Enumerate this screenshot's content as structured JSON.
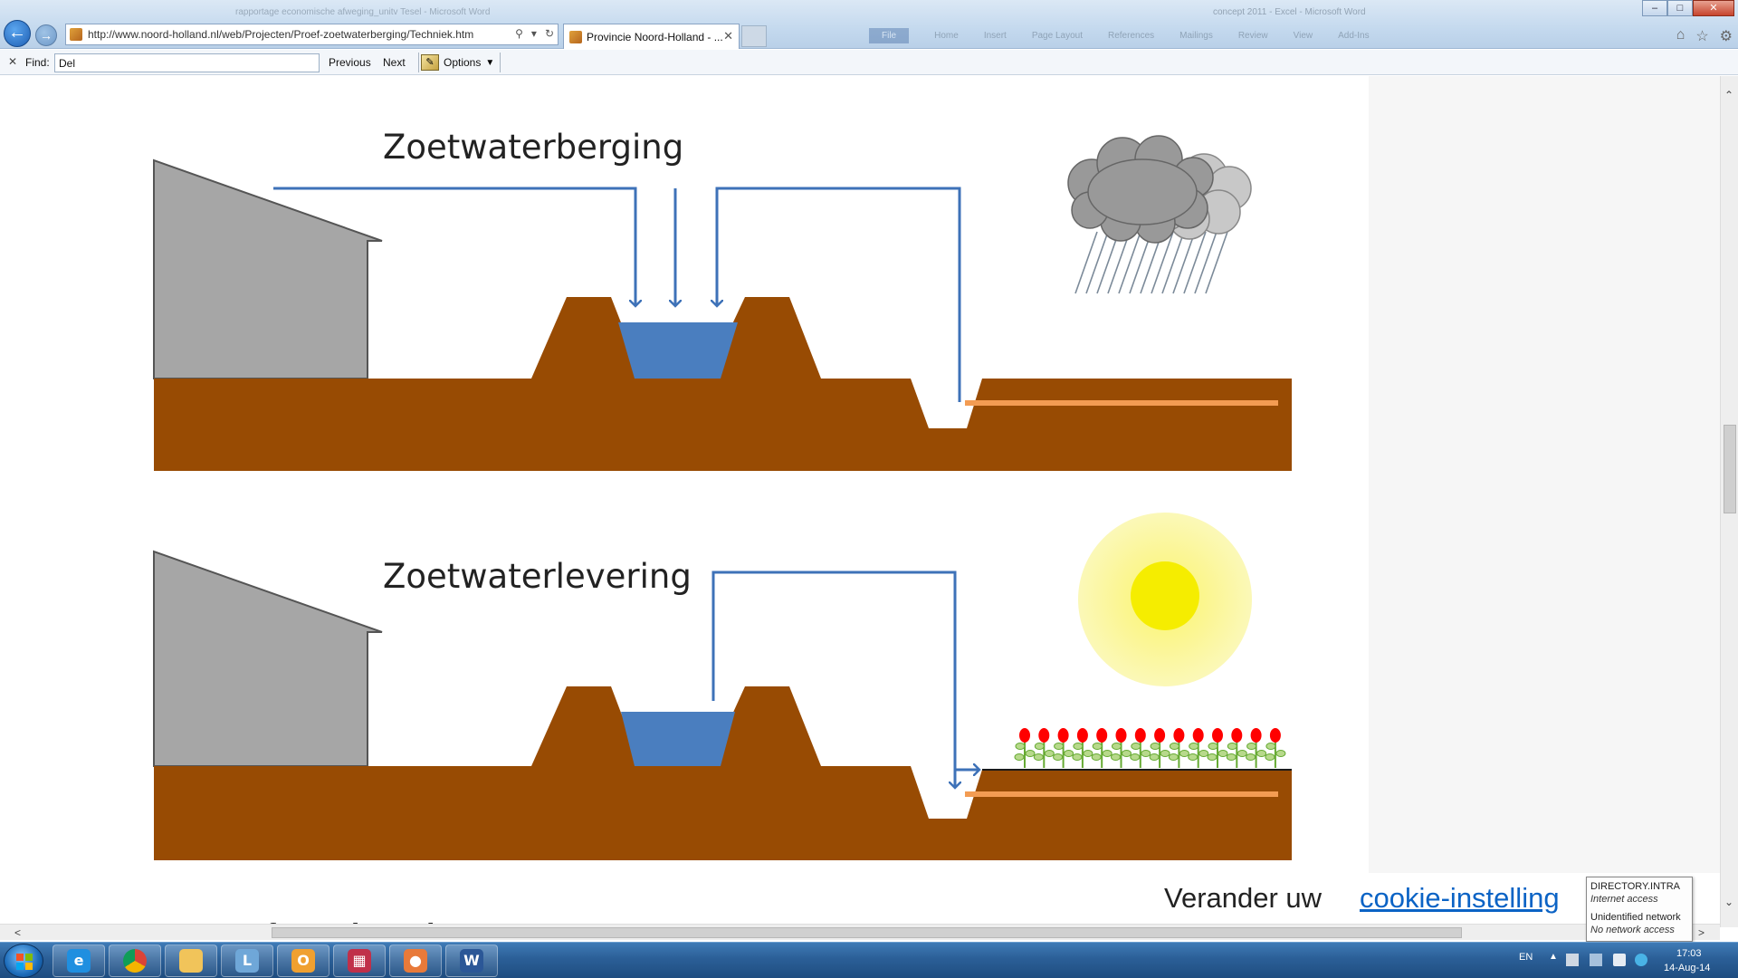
{
  "browser": {
    "url": "http://www.noord-holland.nl/web/Projecten/Proef-zoetwaterberging/Techniek.htm",
    "tab_title": "Provincie Noord-Holland - ...",
    "window_controls": [
      "–",
      "□",
      "✕"
    ]
  },
  "find_bar": {
    "label": "Find:",
    "query": "Del",
    "previous_label": "Previous",
    "next_label": "Next",
    "options_label": "Options"
  },
  "diagram": {
    "panel_storage": {
      "title": "Zoetwaterberging",
      "weather_icon": "rain-cloud-icon"
    },
    "panel_supply": {
      "title": "Zoetwaterlevering",
      "weather_icon": "sun-icon"
    },
    "colors": {
      "soil": "#984b03",
      "water": "#4a7ebf",
      "arrow": "#3e72b8",
      "building": "#a6a6a6",
      "pipe": "#f39c53",
      "cloud_dark": "#999999",
      "cloud_light": "#c8c8c8",
      "sun_halo": "#fbf6a0",
      "sun_core": "#f7ef00",
      "flower": "#ff0000",
      "stem": "#66aa33"
    }
  },
  "cookie_notice": {
    "text": "Verander uw",
    "link": "cookie-instelling"
  },
  "partial_heading": "Referentieproje",
  "network_tooltip": {
    "line1": "DIRECTORY.INTRA",
    "line2": "Internet access",
    "line3": "Unidentified network",
    "line4": "No network access"
  },
  "taskbar": {
    "apps": [
      "internet-explorer",
      "chrome",
      "file-explorer",
      "remote-desktop",
      "outlook",
      "save",
      "paint",
      "word"
    ],
    "language": "EN",
    "time": "17:03",
    "date": "14-Aug-14"
  }
}
